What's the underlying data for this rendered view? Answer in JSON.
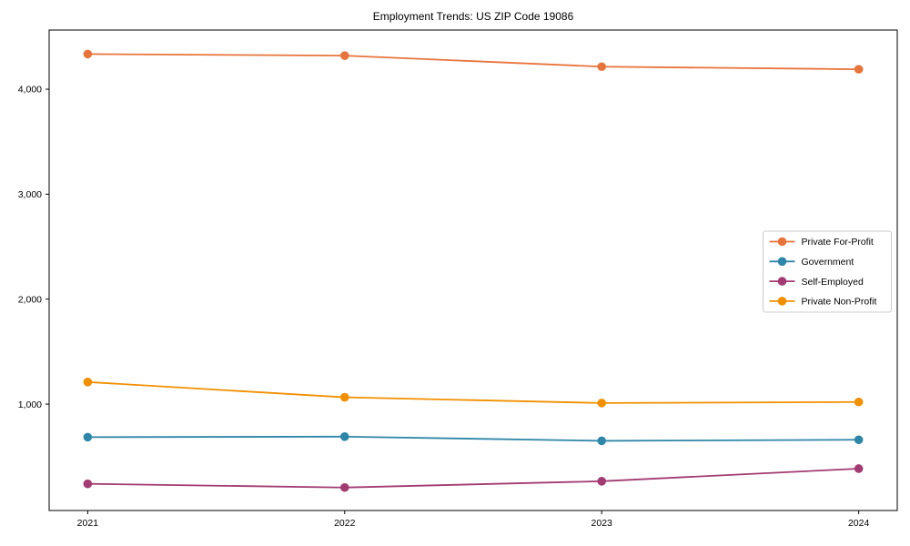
{
  "chart_data": {
    "type": "line",
    "title": "Employment Trends: US ZIP Code 19086",
    "xlabel": "",
    "ylabel": "",
    "x": [
      2021,
      2022,
      2023,
      2024
    ],
    "x_tick_labels": [
      "2021",
      "2022",
      "2023",
      "2024"
    ],
    "y_ticks": [
      1000,
      2000,
      3000,
      4000
    ],
    "y_tick_labels": [
      "1,000",
      "2,000",
      "3,000",
      "4,000"
    ],
    "xlim": [
      2020.85,
      2024.15
    ],
    "ylim": [
      -14,
      4564
    ],
    "grid": false,
    "legend_position": "center-right",
    "marker": "circle",
    "series": [
      {
        "name": "Private For-Profit",
        "color": "#E8743B",
        "values": [
          4335,
          4320,
          4215,
          4190
        ]
      },
      {
        "name": "Government",
        "color": "#2E86A8",
        "values": [
          685,
          690,
          650,
          660
        ]
      },
      {
        "name": "Self-Employed",
        "color": "#A23B72",
        "values": [
          240,
          205,
          265,
          385
        ]
      },
      {
        "name": "Private Non-Profit",
        "color": "#F18F01",
        "values": [
          1210,
          1065,
          1010,
          1020
        ]
      }
    ],
    "axis_color": "#000000",
    "legend_border_color": "#cccccc",
    "background_color": "#ffffff"
  }
}
